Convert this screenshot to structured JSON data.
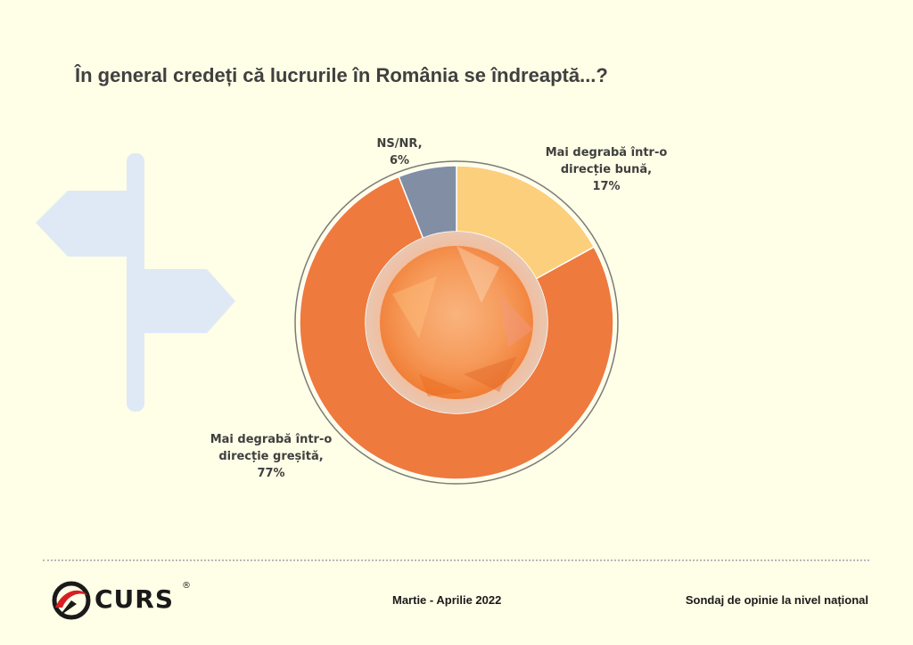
{
  "page": {
    "title": "În general credeți că lucrurile în România se îndreaptă...?",
    "footer_date": "Martie - Aprilie 2022",
    "footer_note": "Sondaj de opinie la nivel național",
    "logo_text": "CURS",
    "logo_mark": "®",
    "logo_icon": "curs-swirl-icon",
    "decor_icon": "signpost-icon"
  },
  "chart_data": {
    "type": "pie",
    "variant": "donut",
    "title": "În general credeți că lucrurile în România se îndreaptă...?",
    "slices": [
      {
        "label_lines": [
          "Mai degrabă într-o",
          "direcție bună,"
        ],
        "value": 17,
        "value_text": "17%",
        "color": "#fccf7c"
      },
      {
        "label_lines": [
          "Mai degrabă într-o",
          "direcție greșită,"
        ],
        "value": 77,
        "value_text": "77%",
        "color": "#ee7a3d"
      },
      {
        "label_lines": [
          "NS/NR,"
        ],
        "value": 6,
        "value_text": "6%",
        "color": "#818ea3"
      }
    ]
  }
}
